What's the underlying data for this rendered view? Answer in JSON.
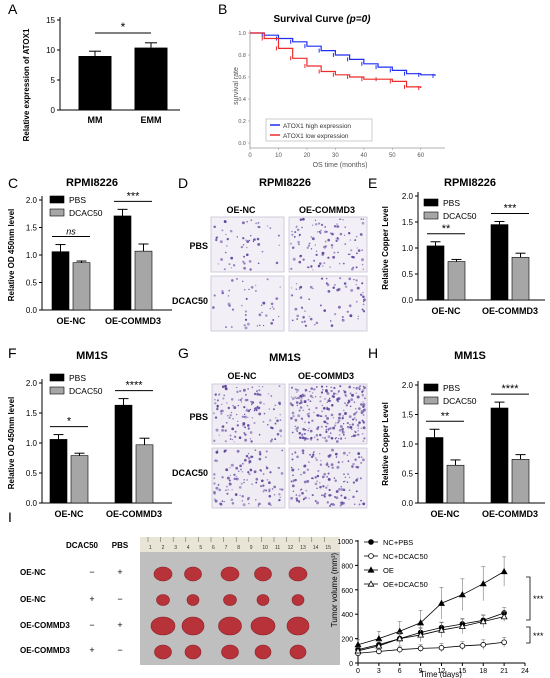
{
  "panels": {
    "A": "A",
    "B": "B",
    "C": "C",
    "D": "D",
    "E": "E",
    "F": "F",
    "G": "G",
    "H": "H",
    "I": "I"
  },
  "colors": {
    "black_bar": "#000000",
    "grey_bar": "#a6a6a6",
    "high_expr": "#1f2ff2",
    "low_expr": "#ee2b2b"
  },
  "chart_data": [
    {
      "id": "A",
      "type": "bar",
      "title": "",
      "ylabel": "Relative expression of ATOX1",
      "categories": [
        "MM",
        "EMM"
      ],
      "values": [
        9.0,
        10.4
      ],
      "errors": [
        0.8,
        0.8
      ],
      "ylim": [
        0,
        15
      ],
      "yticks": [
        "0",
        "5",
        "10",
        "15"
      ],
      "annotations": [
        "*"
      ]
    },
    {
      "id": "B",
      "type": "line",
      "title": "Survival Curve",
      "title_p": "(p=0)",
      "xlabel": "OS time (months)",
      "ylabel": "survival rate",
      "xlim": [
        0,
        70
      ],
      "ylim": [
        0,
        1.0
      ],
      "xticks": [
        "0",
        "10",
        "20",
        "30",
        "40",
        "50",
        "60"
      ],
      "yticks": [
        "0.0",
        "0.2",
        "0.4",
        "0.6",
        "0.8",
        "1.0"
      ],
      "legend": [
        "ATOX1 high expression",
        "ATOX1 low expression"
      ],
      "series": [
        {
          "name": "ATOX1 high expression",
          "x": [
            0,
            5,
            10,
            15,
            20,
            25,
            30,
            35,
            40,
            45,
            50,
            55,
            60,
            65
          ],
          "y": [
            1.0,
            0.98,
            0.95,
            0.92,
            0.88,
            0.84,
            0.8,
            0.76,
            0.72,
            0.69,
            0.66,
            0.63,
            0.62,
            0.61
          ]
        },
        {
          "name": "ATOX1 low expression",
          "x": [
            0,
            5,
            10,
            15,
            20,
            25,
            30,
            35,
            40,
            45,
            50,
            55,
            60
          ],
          "y": [
            1.0,
            0.95,
            0.86,
            0.77,
            0.7,
            0.65,
            0.62,
            0.6,
            0.58,
            0.58,
            0.56,
            0.51,
            0.5
          ]
        }
      ]
    },
    {
      "id": "C",
      "type": "bar",
      "title": "RPMI8226",
      "ylabel": "Relative OD 450nm level",
      "categories": [
        "OE-NC",
        "OE-COMMD3"
      ],
      "legend": [
        "PBS",
        "DCAC50"
      ],
      "ylim": [
        0,
        2.0
      ],
      "yticks": [
        "0.0",
        "0.5",
        "1.0",
        "1.5",
        "2.0"
      ],
      "series": [
        {
          "name": "PBS",
          "values": [
            1.06,
            1.71
          ],
          "errors": [
            0.13,
            0.12
          ]
        },
        {
          "name": "DCAC50",
          "values": [
            0.86,
            1.07
          ],
          "errors": [
            0.03,
            0.13
          ]
        }
      ],
      "annotations": [
        "ns",
        "***"
      ]
    },
    {
      "id": "D",
      "type": "image_grid",
      "title": "RPMI8226",
      "columns": [
        "OE-NC",
        "OE-COMMD3"
      ],
      "rows": [
        "PBS",
        "DCAC50"
      ]
    },
    {
      "id": "E",
      "type": "bar",
      "title": "RPMI8226",
      "ylabel": "Relative Copper Level",
      "categories": [
        "OE-NC",
        "OE-COMMD3"
      ],
      "legend": [
        "PBS",
        "DCAC50"
      ],
      "ylim": [
        0,
        2.0
      ],
      "yticks": [
        "0.0",
        "0.5",
        "1.0",
        "1.5",
        "2.0"
      ],
      "series": [
        {
          "name": "PBS",
          "values": [
            1.04,
            1.45
          ],
          "errors": [
            0.08,
            0.06
          ]
        },
        {
          "name": "DCAC50",
          "values": [
            0.74,
            0.82
          ],
          "errors": [
            0.04,
            0.08
          ]
        }
      ],
      "annotations": [
        "**",
        "***"
      ]
    },
    {
      "id": "F",
      "type": "bar",
      "title": "MM1S",
      "ylabel": "Relative OD 450nm level",
      "categories": [
        "OE-NC",
        "OE-COMMD3"
      ],
      "legend": [
        "PBS",
        "DCAC50"
      ],
      "ylim": [
        0,
        2.0
      ],
      "yticks": [
        "0.0",
        "0.5",
        "1.0",
        "1.5",
        "2.0"
      ],
      "series": [
        {
          "name": "PBS",
          "values": [
            1.06,
            1.63
          ],
          "errors": [
            0.08,
            0.11
          ]
        },
        {
          "name": "DCAC50",
          "values": [
            0.79,
            0.97
          ],
          "errors": [
            0.04,
            0.11
          ]
        }
      ],
      "annotations": [
        "*",
        "****"
      ]
    },
    {
      "id": "G",
      "type": "image_grid",
      "title": "MM1S",
      "columns": [
        "OE-NC",
        "OE-COMMD3"
      ],
      "rows": [
        "PBS",
        "DCAC50"
      ]
    },
    {
      "id": "H",
      "type": "bar",
      "title": "MM1S",
      "ylabel": "Relative Copper Level",
      "categories": [
        "OE-NC",
        "OE-COMMD3"
      ],
      "legend": [
        "PBS",
        "DCAC50"
      ],
      "ylim": [
        0,
        2.0
      ],
      "yticks": [
        "0.0",
        "0.5",
        "1.0",
        "1.5",
        "2.0"
      ],
      "series": [
        {
          "name": "PBS",
          "values": [
            1.11,
            1.61
          ],
          "errors": [
            0.14,
            0.1
          ]
        },
        {
          "name": "DCAC50",
          "values": [
            0.64,
            0.74
          ],
          "errors": [
            0.09,
            0.08
          ]
        }
      ],
      "annotations": [
        "**",
        "****"
      ]
    },
    {
      "id": "I",
      "type": "line",
      "xlabel": "Time (days)",
      "ylabel": "Tumor volume (mm³)",
      "xlim": [
        0,
        24
      ],
      "ylim": [
        0,
        1000
      ],
      "xticks": [
        "0",
        "3",
        "6",
        "9",
        "12",
        "15",
        "18",
        "21",
        "24"
      ],
      "yticks": [
        "0",
        "200",
        "400",
        "600",
        "800",
        "1000"
      ],
      "x": [
        0,
        3,
        6,
        9,
        12,
        15,
        18,
        21
      ],
      "legend_position": "top-right",
      "series": [
        {
          "name": "NC+PBS",
          "marker": "filled-circle",
          "values": [
            110,
            150,
            200,
            250,
            290,
            320,
            350,
            410
          ],
          "errors": [
            25,
            30,
            35,
            40,
            45,
            45,
            45,
            45
          ]
        },
        {
          "name": "NC+DCAC50",
          "marker": "open-circle",
          "values": [
            80,
            95,
            110,
            120,
            125,
            140,
            150,
            170
          ],
          "errors": [
            20,
            25,
            30,
            30,
            35,
            35,
            40,
            40
          ]
        },
        {
          "name": "OE",
          "marker": "filled-triangle",
          "values": [
            150,
            200,
            260,
            330,
            490,
            560,
            650,
            750
          ],
          "errors": [
            40,
            60,
            80,
            100,
            130,
            130,
            140,
            120
          ]
        },
        {
          "name": "OE+DCAC50",
          "marker": "open-triangle",
          "values": [
            100,
            140,
            200,
            230,
            270,
            300,
            340,
            380
          ],
          "errors": [
            30,
            40,
            50,
            55,
            60,
            60,
            50,
            40
          ]
        }
      ],
      "annotations": [
        "***",
        "***"
      ]
    }
  ],
  "tumor_table": {
    "headers": [
      "DCAC50",
      "PBS"
    ],
    "rows": [
      {
        "label": "OE-NC",
        "dcac": "−",
        "pbs": "+"
      },
      {
        "label": "OE-NC",
        "dcac": "+",
        "pbs": "−"
      },
      {
        "label": "OE-COMMD3",
        "dcac": "−",
        "pbs": "+"
      },
      {
        "label": "OE-COMMD3",
        "dcac": "+",
        "pbs": "−"
      }
    ],
    "ruler": [
      "1",
      "2",
      "3",
      "4",
      "5",
      "6",
      "7",
      "8",
      "9",
      "10",
      "11",
      "12",
      "13",
      "14",
      "15"
    ]
  }
}
